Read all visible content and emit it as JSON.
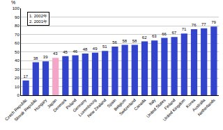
{
  "chart_data": {
    "type": "bar",
    "ylabel": "%",
    "annotations": [
      "1. 2002年",
      "2. 2001年"
    ],
    "categories": [
      "Czech Republic",
      "Slovak Republic",
      "Hungary",
      "Japan",
      "Denmark",
      "Poland",
      "Germany",
      "Luxembourg",
      "New Zealand",
      "Spain",
      "Belgium",
      "Switzerland",
      "Canada",
      "Italy",
      "United States",
      "Finland",
      "United Kingdom",
      "Korea",
      "Australia",
      "Netherlands"
    ],
    "values": [
      17,
      38,
      39,
      43,
      45,
      46,
      48,
      49,
      51,
      56,
      58,
      58,
      62,
      63,
      66,
      67,
      71,
      76,
      77,
      79
    ],
    "colors": [
      "#3344cc",
      "#3344cc",
      "#3344cc",
      "#f4a6c8",
      "#3344cc",
      "#3344cc",
      "#3344cc",
      "#3344cc",
      "#3344cc",
      "#3344cc",
      "#3344cc",
      "#3344cc",
      "#3344cc",
      "#3344cc",
      "#3344cc",
      "#3344cc",
      "#3344cc",
      "#3344cc",
      "#3344cc",
      "#3344cc"
    ],
    "ylim": [
      0,
      100
    ],
    "yticks": [
      0,
      10,
      20,
      30,
      40,
      50,
      60,
      70,
      80,
      90,
      100
    ],
    "grid": true,
    "data_labels": true
  }
}
